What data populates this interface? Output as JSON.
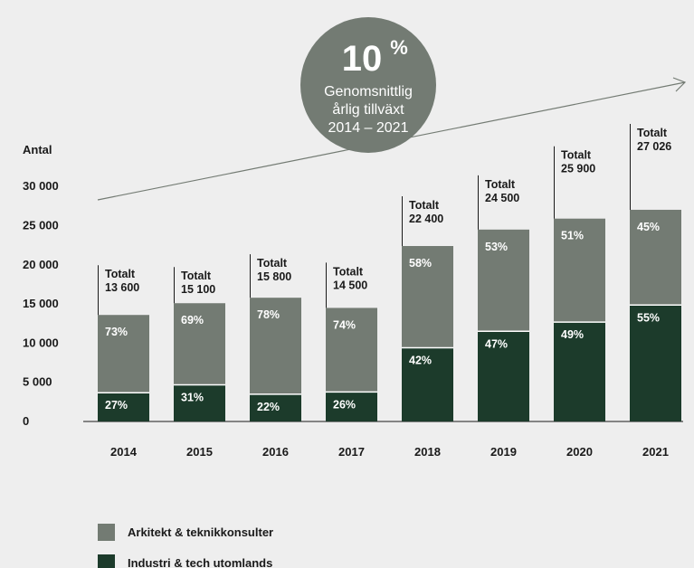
{
  "chart_data": {
    "type": "bar",
    "stacked": true,
    "ylabel": "Antal",
    "ylim": [
      0,
      30000
    ],
    "yticks": [
      "0",
      "5 000",
      "10 000",
      "15 000",
      "20 000",
      "25 000",
      "30 000"
    ],
    "ytick_values": [
      0,
      5000,
      10000,
      15000,
      20000,
      25000,
      30000
    ],
    "categories": [
      "2014",
      "2015",
      "2016",
      "2017",
      "2018",
      "2019",
      "2020",
      "2021"
    ],
    "totals": [
      13600,
      15100,
      15800,
      14500,
      22400,
      24500,
      25900,
      27026
    ],
    "total_prefix": "Totalt",
    "total_labels": [
      "13 600",
      "15 100",
      "15 800",
      "14 500",
      "22 400",
      "24 500",
      "25 900",
      "27 026"
    ],
    "series": [
      {
        "name": "Industri & tech utomlands",
        "color": "#1c3b2b",
        "percent": [
          27,
          31,
          22,
          26,
          42,
          47,
          49,
          55
        ],
        "labels": [
          "27%",
          "31%",
          "22%",
          "26%",
          "42%",
          "47%",
          "49%",
          "55%"
        ]
      },
      {
        "name": "Arkitekt & teknikkonsulter",
        "color": "#737b73",
        "percent": [
          73,
          69,
          78,
          74,
          58,
          53,
          51,
          45
        ],
        "labels": [
          "73%",
          "69%",
          "78%",
          "74%",
          "58%",
          "53%",
          "51%",
          "45%"
        ]
      }
    ],
    "annotation": {
      "big": "10",
      "pct": "%",
      "lines": [
        "Genomsnittlig",
        "årlig tillväxt",
        "2014 – 2021"
      ],
      "circle_color": "#737b73"
    },
    "legend": {
      "placement": "bottom-left",
      "items": [
        {
          "label": "Arkitekt & teknikkonsulter",
          "color": "#737b73"
        },
        {
          "label": "Industri & tech utomlands",
          "color": "#1c3b2b"
        }
      ]
    }
  }
}
